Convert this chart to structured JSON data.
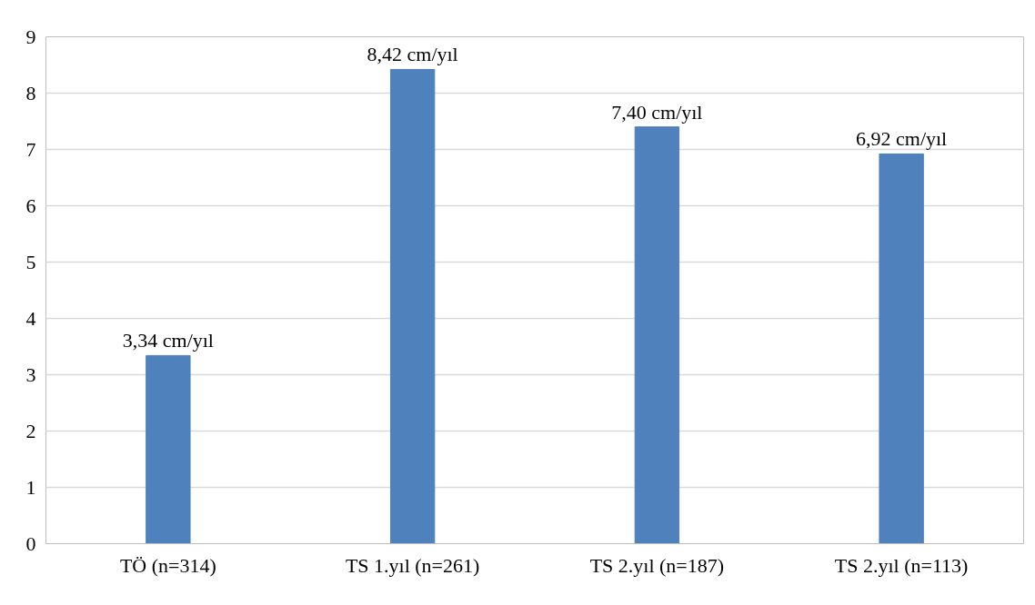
{
  "chart_data": {
    "type": "bar",
    "categories": [
      "TÖ (n=314)",
      "TS 1.yıl (n=261)",
      "TS 2.yıl (n=187)",
      "TS 2.yıl (n=113)"
    ],
    "values": [
      3.34,
      8.42,
      7.4,
      6.92
    ],
    "value_labels": [
      "3,34 cm/yıl",
      "8,42 cm/yıl",
      "7,40 cm/yıl",
      "6,92 cm/yıl"
    ],
    "color": "#4f81bd",
    "ylim": [
      0,
      9
    ],
    "yticks": [
      0,
      1,
      2,
      3,
      4,
      5,
      6,
      7,
      8,
      9
    ],
    "grid": "y"
  }
}
